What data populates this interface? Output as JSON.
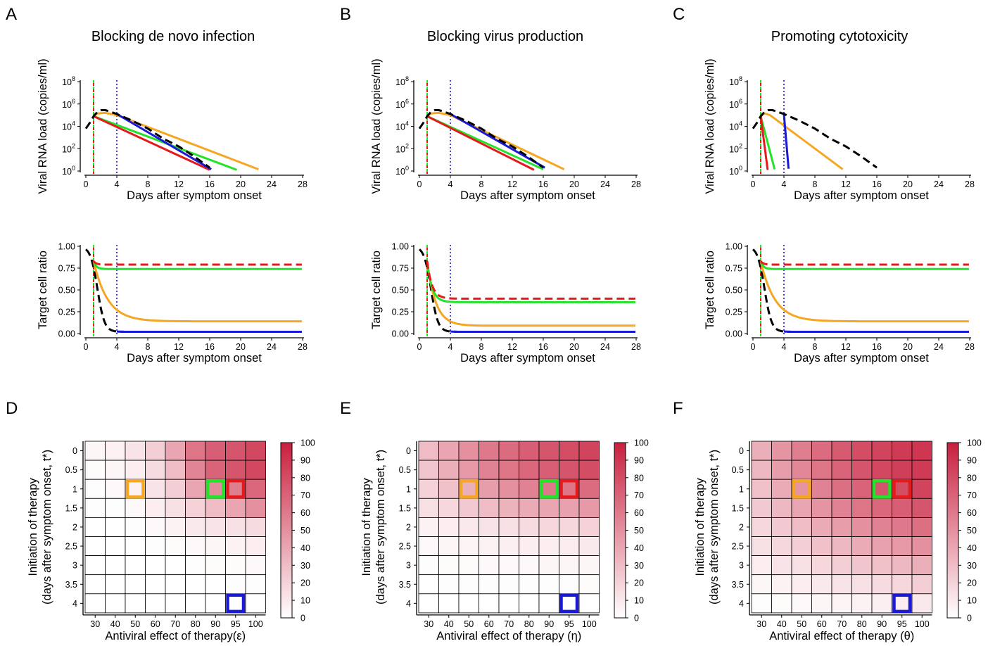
{
  "colors": {
    "red": "#e41a1c",
    "green": "#22e22a",
    "orange": "#f5a623",
    "blue": "#1a1ad6",
    "black": "#000000",
    "heat_low": "#ffffff",
    "heat_high": "#c8203e"
  },
  "panels": [
    {
      "label": "A",
      "title": "Blocking de novo infection"
    },
    {
      "label": "B",
      "title": "Blocking virus production"
    },
    {
      "label": "C",
      "title": "Promoting cytotoxicity"
    }
  ],
  "heat_panels": [
    {
      "label": "D",
      "xlabel": "Antiviral effect of therapy(ε)"
    },
    {
      "label": "E",
      "xlabel": "Antiviral effect of therapy (η)"
    },
    {
      "label": "F",
      "xlabel": "Antiviral effect of therapy (θ)"
    }
  ],
  "chart_data": [
    {
      "type": "line",
      "panel": "A",
      "title": "Blocking de novo infection",
      "xlabel": "Days after symptom onset",
      "ylabel": "Viral RNA load (copies/ml)",
      "xlim": [
        0,
        28
      ],
      "ylim": [
        0,
        8
      ],
      "y_scale": "log10",
      "x_ticks": [
        0,
        4,
        8,
        12,
        16,
        20,
        24,
        28
      ],
      "y_ticks": [
        "10⁰",
        "10²",
        "10⁴",
        "10⁶",
        "10⁸"
      ],
      "vlines": [
        {
          "x": 1,
          "color": "green-red dashed"
        },
        {
          "x": 4,
          "color": "blue dotted"
        }
      ],
      "series": [
        {
          "color": "black",
          "dashed": true,
          "x": [
            0,
            0.5,
            1,
            1.5,
            2,
            2.5,
            3,
            4,
            6,
            8,
            10,
            12,
            14,
            16
          ],
          "y": [
            3.8,
            4.3,
            4.9,
            5.3,
            5.45,
            5.45,
            5.35,
            5.1,
            4.5,
            3.8,
            2.9,
            2.2,
            1.3,
            0.3
          ]
        },
        {
          "color": "red",
          "x": [
            1,
            16
          ],
          "y": [
            4.9,
            0.1
          ]
        },
        {
          "color": "green",
          "x": [
            1,
            19.5
          ],
          "y": [
            4.9,
            0.1
          ]
        },
        {
          "color": "orange",
          "x": [
            1,
            1.5,
            2.5,
            4,
            22.3
          ],
          "y": [
            4.9,
            5.15,
            5.2,
            5.0,
            0.15
          ]
        },
        {
          "color": "blue",
          "x": [
            4,
            16.2
          ],
          "y": [
            5.1,
            0.15
          ]
        }
      ]
    },
    {
      "type": "line",
      "panel": "A",
      "xlabel": "Days after symptom onset",
      "ylabel": "Target cell ratio",
      "xlim": [
        0,
        28
      ],
      "ylim": [
        0,
        1
      ],
      "x_ticks": [
        0,
        4,
        8,
        12,
        16,
        20,
        24,
        28
      ],
      "y_ticks": [
        "0.00",
        "0.25",
        "0.50",
        "0.75",
        "1.00"
      ],
      "vlines": [
        {
          "x": 1,
          "color": "green-red dashed"
        },
        {
          "x": 4,
          "color": "blue dotted"
        }
      ],
      "series": [
        {
          "color": "black",
          "dashed": true,
          "start": 1.0,
          "plateau": 0.02,
          "onset": 1.5,
          "rate": 2.2
        },
        {
          "color": "red",
          "dashed": true,
          "start": 0.83,
          "plateau": 0.79,
          "from_x": 1
        },
        {
          "color": "green",
          "start": 0.83,
          "plateau": 0.74,
          "from_x": 1
        },
        {
          "color": "orange",
          "start": 0.83,
          "plateau": 0.14,
          "from_x": 1,
          "rate": 0.55
        },
        {
          "color": "blue",
          "plateau": 0.02,
          "from_x": 4
        }
      ]
    },
    {
      "type": "line",
      "panel": "B",
      "title": "Blocking virus production",
      "xlabel": "Days after symptom onset",
      "ylabel": "Viral RNA load (copies/ml)",
      "xlim": [
        0,
        28
      ],
      "ylim": [
        0,
        8
      ],
      "y_scale": "log10",
      "x_ticks": [
        0,
        4,
        8,
        12,
        16,
        20,
        24,
        28
      ],
      "y_ticks": [
        "10⁰",
        "10²",
        "10⁴",
        "10⁶",
        "10⁸"
      ],
      "vlines": [
        {
          "x": 1,
          "color": "green-red dashed"
        },
        {
          "x": 4,
          "color": "blue dotted"
        }
      ],
      "series": [
        {
          "color": "black",
          "dashed": true,
          "x": [
            0,
            0.5,
            1,
            1.5,
            2,
            2.5,
            3,
            4,
            6,
            8,
            10,
            12,
            14,
            16
          ],
          "y": [
            3.8,
            4.3,
            4.9,
            5.3,
            5.45,
            5.45,
            5.35,
            5.1,
            4.5,
            3.8,
            2.9,
            2.2,
            1.3,
            0.3
          ]
        },
        {
          "color": "red",
          "x": [
            1,
            14.8
          ],
          "y": [
            4.9,
            0.1
          ]
        },
        {
          "color": "green",
          "x": [
            1,
            16
          ],
          "y": [
            4.9,
            0.15
          ]
        },
        {
          "color": "orange",
          "x": [
            1,
            1.5,
            2.5,
            4,
            18.7
          ],
          "y": [
            4.9,
            5.15,
            5.2,
            5.0,
            0.15
          ]
        },
        {
          "color": "blue",
          "x": [
            4,
            16.2
          ],
          "y": [
            5.1,
            0.3
          ]
        }
      ]
    },
    {
      "type": "line",
      "panel": "B",
      "xlabel": "Days after symptom onset",
      "ylabel": "Target cell ratio",
      "xlim": [
        0,
        28
      ],
      "ylim": [
        0,
        1
      ],
      "x_ticks": [
        0,
        4,
        8,
        12,
        16,
        20,
        24,
        28
      ],
      "y_ticks": [
        "0.00",
        "0.25",
        "0.50",
        "0.75",
        "1.00"
      ],
      "vlines": [
        {
          "x": 1,
          "color": "green-red dashed"
        },
        {
          "x": 4,
          "color": "blue dotted"
        }
      ],
      "series": [
        {
          "color": "black",
          "dashed": true,
          "start": 1.0,
          "plateau": 0.02,
          "onset": 1.5,
          "rate": 2.2
        },
        {
          "color": "red",
          "dashed": true,
          "start": 0.83,
          "plateau": 0.4,
          "from_x": 1,
          "rate": 1.6
        },
        {
          "color": "green",
          "start": 0.83,
          "plateau": 0.36,
          "from_x": 1,
          "rate": 1.6
        },
        {
          "color": "orange",
          "start": 0.83,
          "plateau": 0.09,
          "from_x": 1,
          "rate": 0.9
        },
        {
          "color": "blue",
          "plateau": 0.02,
          "from_x": 4
        }
      ]
    },
    {
      "type": "line",
      "panel": "C",
      "title": "Promoting cytotoxicity",
      "xlabel": "Days after symptom onset",
      "ylabel": "Viral RNA load (copies/ml)",
      "xlim": [
        0,
        28
      ],
      "ylim": [
        0,
        8
      ],
      "y_scale": "log10",
      "x_ticks": [
        0,
        4,
        8,
        12,
        16,
        20,
        24,
        28
      ],
      "y_ticks": [
        "10⁰",
        "10²",
        "10⁴",
        "10⁶",
        "10⁸"
      ],
      "vlines": [
        {
          "x": 1,
          "color": "green-red dashed"
        },
        {
          "x": 4,
          "color": "blue dotted"
        }
      ],
      "series": [
        {
          "color": "black",
          "dashed": true,
          "x": [
            0,
            0.5,
            1,
            1.5,
            2,
            2.5,
            3,
            4,
            6,
            8,
            10,
            12,
            14,
            16
          ],
          "y": [
            3.8,
            4.3,
            4.9,
            5.3,
            5.45,
            5.45,
            5.35,
            5.1,
            4.5,
            3.8,
            2.9,
            2.2,
            1.3,
            0.3
          ]
        },
        {
          "color": "red",
          "x": [
            1,
            1.9
          ],
          "y": [
            4.9,
            0.1
          ]
        },
        {
          "color": "green",
          "x": [
            1,
            2.8
          ],
          "y": [
            4.9,
            0.15
          ]
        },
        {
          "color": "orange",
          "x": [
            1,
            1.5,
            2.2,
            11.6
          ],
          "y": [
            4.9,
            5.15,
            5.0,
            0.15
          ]
        },
        {
          "color": "blue",
          "x": [
            4,
            4.6
          ],
          "y": [
            5.1,
            0.2
          ]
        }
      ]
    },
    {
      "type": "line",
      "panel": "C",
      "xlabel": "Days after symptom onset",
      "ylabel": "Target cell ratio",
      "xlim": [
        0,
        28
      ],
      "ylim": [
        0,
        1
      ],
      "x_ticks": [
        0,
        4,
        8,
        12,
        16,
        20,
        24,
        28
      ],
      "y_ticks": [
        "0.00",
        "0.25",
        "0.50",
        "0.75",
        "1.00"
      ],
      "vlines": [
        {
          "x": 1,
          "color": "green-red dashed"
        },
        {
          "x": 4,
          "color": "blue dotted"
        }
      ],
      "series": [
        {
          "color": "black",
          "dashed": true,
          "start": 1.0,
          "plateau": 0.02,
          "onset": 1.5,
          "rate": 2.2
        },
        {
          "color": "red",
          "dashed": true,
          "start": 0.83,
          "plateau": 0.79,
          "from_x": 1
        },
        {
          "color": "green",
          "start": 0.83,
          "plateau": 0.74,
          "from_x": 1
        },
        {
          "color": "orange",
          "start": 0.83,
          "plateau": 0.14,
          "from_x": 1,
          "rate": 0.55
        },
        {
          "color": "blue",
          "plateau": 0.02,
          "from_x": 4
        }
      ]
    },
    {
      "type": "heatmap",
      "panel": "D",
      "xlabel": "Antiviral effect of therapy(ε)",
      "ylabel": "Initiation of therapy (days after symptom onset, t*)",
      "x": [
        30,
        40,
        50,
        60,
        70,
        80,
        90,
        95,
        100
      ],
      "y": [
        0,
        0.5,
        1,
        1.5,
        2,
        2.5,
        3,
        3.5,
        4
      ],
      "colorbar_ticks": [
        0,
        10,
        20,
        30,
        40,
        50,
        60,
        70,
        80,
        90,
        100
      ],
      "highlights": [
        {
          "x": 50,
          "y": 1,
          "color": "orange"
        },
        {
          "x": 90,
          "y": 1,
          "color": "green"
        },
        {
          "x": 95,
          "y": 1,
          "color": "red"
        },
        {
          "x": 95,
          "y": 4,
          "color": "blue"
        }
      ],
      "values": [
        [
          4,
          6,
          12,
          22,
          40,
          62,
          72,
          76,
          82
        ],
        [
          2,
          4,
          8,
          16,
          30,
          55,
          70,
          76,
          82
        ],
        [
          1,
          3,
          6,
          12,
          22,
          40,
          52,
          58,
          68
        ],
        [
          1,
          1,
          3,
          8,
          14,
          20,
          30,
          40,
          50
        ],
        [
          0,
          0,
          1,
          3,
          6,
          10,
          12,
          14,
          16
        ],
        [
          0,
          0,
          0,
          1,
          2,
          3,
          4,
          6,
          8
        ],
        [
          0,
          0,
          0,
          0,
          0,
          1,
          2,
          2,
          3
        ],
        [
          0,
          0,
          0,
          0,
          0,
          0,
          0,
          1,
          1
        ],
        [
          0,
          0,
          0,
          0,
          0,
          0,
          0,
          0,
          0
        ]
      ]
    },
    {
      "type": "heatmap",
      "panel": "E",
      "xlabel": "Antiviral effect of therapy (η)",
      "ylabel": "Initiation of therapy (days after symptom onset, t*)",
      "x": [
        30,
        40,
        50,
        60,
        70,
        80,
        90,
        95,
        100
      ],
      "y": [
        0,
        0.5,
        1,
        1.5,
        2,
        2.5,
        3,
        3.5,
        4
      ],
      "colorbar_ticks": [
        0,
        10,
        20,
        30,
        40,
        50,
        60,
        70,
        80,
        90,
        100
      ],
      "highlights": [
        {
          "x": 50,
          "y": 1,
          "color": "orange"
        },
        {
          "x": 90,
          "y": 1,
          "color": "green"
        },
        {
          "x": 95,
          "y": 1,
          "color": "red"
        },
        {
          "x": 95,
          "y": 4,
          "color": "blue"
        }
      ],
      "values": [
        [
          30,
          40,
          50,
          60,
          66,
          72,
          76,
          80,
          84
        ],
        [
          26,
          36,
          46,
          56,
          62,
          68,
          72,
          76,
          80
        ],
        [
          20,
          28,
          36,
          44,
          50,
          56,
          60,
          62,
          66
        ],
        [
          14,
          18,
          24,
          30,
          34,
          38,
          40,
          42,
          46
        ],
        [
          6,
          8,
          10,
          12,
          14,
          16,
          18,
          18,
          20
        ],
        [
          3,
          4,
          5,
          6,
          7,
          8,
          8,
          9,
          10
        ],
        [
          1,
          2,
          2,
          3,
          3,
          3,
          4,
          4,
          4
        ],
        [
          0,
          1,
          1,
          1,
          1,
          1,
          1,
          1,
          2
        ],
        [
          0,
          0,
          0,
          0,
          0,
          0,
          0,
          0,
          0
        ]
      ]
    },
    {
      "type": "heatmap",
      "panel": "F",
      "xlabel": "Antiviral effect of therapy (θ)",
      "ylabel": "Initiation of therapy (days after symptom onset, t*)",
      "x": [
        30,
        40,
        50,
        60,
        70,
        80,
        90,
        95,
        100
      ],
      "y": [
        0,
        0.5,
        1,
        1.5,
        2,
        2.5,
        3,
        3.5,
        4
      ],
      "colorbar_ticks": [
        0,
        10,
        20,
        30,
        40,
        50,
        60,
        70,
        80,
        90,
        100
      ],
      "highlights": [
        {
          "x": 50,
          "y": 1,
          "color": "orange"
        },
        {
          "x": 90,
          "y": 1,
          "color": "green"
        },
        {
          "x": 95,
          "y": 1,
          "color": "red"
        },
        {
          "x": 95,
          "y": 4,
          "color": "blue"
        }
      ],
      "values": [
        [
          36,
          48,
          58,
          66,
          74,
          80,
          84,
          88,
          90
        ],
        [
          32,
          44,
          54,
          62,
          70,
          76,
          82,
          86,
          88
        ],
        [
          28,
          38,
          48,
          56,
          64,
          70,
          76,
          80,
          84
        ],
        [
          24,
          32,
          40,
          48,
          56,
          62,
          68,
          72,
          76
        ],
        [
          18,
          24,
          30,
          38,
          44,
          50,
          56,
          60,
          64
        ],
        [
          14,
          18,
          22,
          28,
          32,
          38,
          42,
          46,
          50
        ],
        [
          8,
          12,
          14,
          18,
          22,
          26,
          28,
          32,
          36
        ],
        [
          4,
          6,
          8,
          10,
          12,
          14,
          16,
          18,
          22
        ],
        [
          1,
          2,
          3,
          4,
          5,
          6,
          7,
          8,
          10
        ]
      ]
    }
  ]
}
